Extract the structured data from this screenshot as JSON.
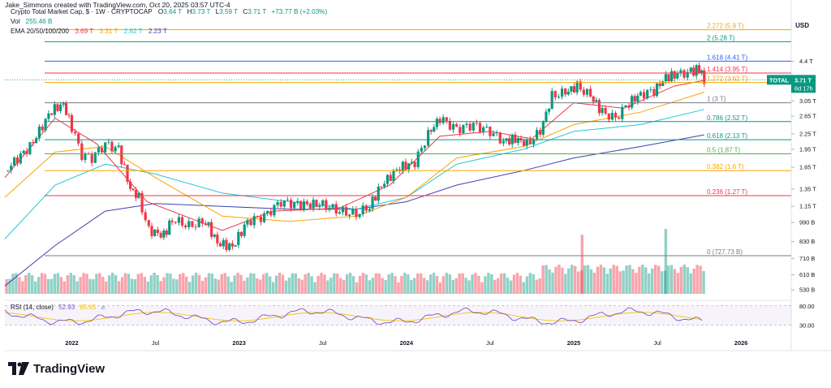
{
  "credit": "Jake_Simmons created with TradingView.com, Oct 20, 2025 03:57 UTC-4",
  "legend": {
    "symbol": "Crypto Total Market Cap, $ · 1W · CRYPTOCAP",
    "ohlc": [
      {
        "k": "O",
        "v": "3.64 T"
      },
      {
        "k": "H",
        "v": "3.73 T"
      },
      {
        "k": "L",
        "v": "3.59 T"
      },
      {
        "k": "C",
        "v": "3.71 T"
      }
    ],
    "change": "+73.77 B (+2.03%)",
    "vol_label": "Vol",
    "vol_value": "255.46 B",
    "ema_label": "EMA 20/50/100/200",
    "ema_values": [
      "3.69 T",
      "3.31 T",
      "2.82 T",
      "2.23 T"
    ],
    "ema_colors": [
      "#f23645",
      "#f7a600",
      "#26c6da",
      "#3f3fb5"
    ]
  },
  "currency": "USD",
  "rsi": {
    "label": "RSI (14, close)",
    "value": "52.93",
    "value2": "65.65",
    "upper": "80.00",
    "lower": "30.00"
  },
  "logo": "TradingView",
  "chart_data": {
    "type": "candlestick",
    "title": "Crypto Total Market Cap, $ · 1W · CRYPTOCAP",
    "y_scale": "log",
    "x_ticks": [
      "2022",
      "Jul",
      "2023",
      "Jul",
      "2024",
      "Jul",
      "2025",
      "Jul",
      "2026"
    ],
    "y_ticks": [
      "4.4 T",
      "3.75 T",
      "3.05 T",
      "2.65 T",
      "2.25 T",
      "1.95 T",
      "1.65 T",
      "1.35 T",
      "1.15 T",
      "990 B",
      "830 B",
      "710 B",
      "610 B",
      "530 B"
    ],
    "price_path": [
      [
        2021.6,
        1.6
      ],
      [
        2021.75,
        2.0
      ],
      [
        2021.88,
        2.8
      ],
      [
        2021.95,
        2.95
      ],
      [
        2022.0,
        2.4
      ],
      [
        2022.06,
        1.85
      ],
      [
        2022.12,
        1.8
      ],
      [
        2022.2,
        2.05
      ],
      [
        2022.28,
        1.95
      ],
      [
        2022.35,
        1.35
      ],
      [
        2022.4,
        1.25
      ],
      [
        2022.46,
        0.92
      ],
      [
        2022.55,
        0.88
      ],
      [
        2022.6,
        1.02
      ],
      [
        2022.7,
        0.96
      ],
      [
        2022.8,
        1.0
      ],
      [
        2022.87,
        0.82
      ],
      [
        2022.96,
        0.79
      ],
      [
        2023.05,
        1.0
      ],
      [
        2023.15,
        1.05
      ],
      [
        2023.25,
        1.2
      ],
      [
        2023.35,
        1.17
      ],
      [
        2023.5,
        1.17
      ],
      [
        2023.6,
        1.1
      ],
      [
        2023.7,
        1.07
      ],
      [
        2023.78,
        1.15
      ],
      [
        2023.85,
        1.4
      ],
      [
        2023.96,
        1.65
      ],
      [
        2024.05,
        1.72
      ],
      [
        2024.13,
        2.25
      ],
      [
        2024.2,
        2.6
      ],
      [
        2024.3,
        2.35
      ],
      [
        2024.4,
        2.45
      ],
      [
        2024.5,
        2.3
      ],
      [
        2024.58,
        2.1
      ],
      [
        2024.65,
        2.15
      ],
      [
        2024.72,
        2.05
      ],
      [
        2024.8,
        2.3
      ],
      [
        2024.87,
        3.2
      ],
      [
        2024.95,
        3.3
      ],
      [
        2025.02,
        3.5
      ],
      [
        2025.1,
        3.2
      ],
      [
        2025.17,
        2.75
      ],
      [
        2025.25,
        2.6
      ],
      [
        2025.33,
        3.0
      ],
      [
        2025.4,
        3.25
      ],
      [
        2025.48,
        3.35
      ],
      [
        2025.55,
        3.8
      ],
      [
        2025.62,
        3.9
      ],
      [
        2025.7,
        4.0
      ],
      [
        2025.75,
        4.1
      ],
      [
        2025.78,
        3.71
      ]
    ],
    "volume_bars": [
      {
        "x": 2025.05,
        "v": 830,
        "up": false
      },
      {
        "x": 2025.55,
        "v": 880,
        "up": true
      }
    ],
    "fib_levels": [
      {
        "ratio": "2.272",
        "value": "5.9 T",
        "color": "#f7a600"
      },
      {
        "ratio": "2",
        "value": "5.28 T",
        "color": "#089981"
      },
      {
        "ratio": "1.618",
        "value": "4.41 T",
        "color": "#2962ff"
      },
      {
        "ratio": "1.414",
        "value": "3.95 T",
        "color": "#f23645"
      },
      {
        "ratio": "1.272",
        "value": "3.62 T",
        "color": "#f7a600"
      },
      {
        "ratio": "1",
        "value": "3 T",
        "color": "#787b86"
      },
      {
        "ratio": "0.786",
        "value": "2.52 T",
        "color": "#089981"
      },
      {
        "ratio": "0.618",
        "value": "2.13 T",
        "color": "#089981"
      },
      {
        "ratio": "0.5",
        "value": "1.87 T",
        "color": "#4caf50"
      },
      {
        "ratio": "0.382",
        "value": "1.6 T",
        "color": "#f7a600"
      },
      {
        "ratio": "0.236",
        "value": "1.27 T",
        "color": "#f23645"
      },
      {
        "ratio": "0",
        "value": "727.73 B",
        "color": "#787b86"
      }
    ],
    "last_price_tag": {
      "symbol": "TOTAL",
      "price": "3.71 T",
      "countdown": "6d 17h"
    }
  }
}
